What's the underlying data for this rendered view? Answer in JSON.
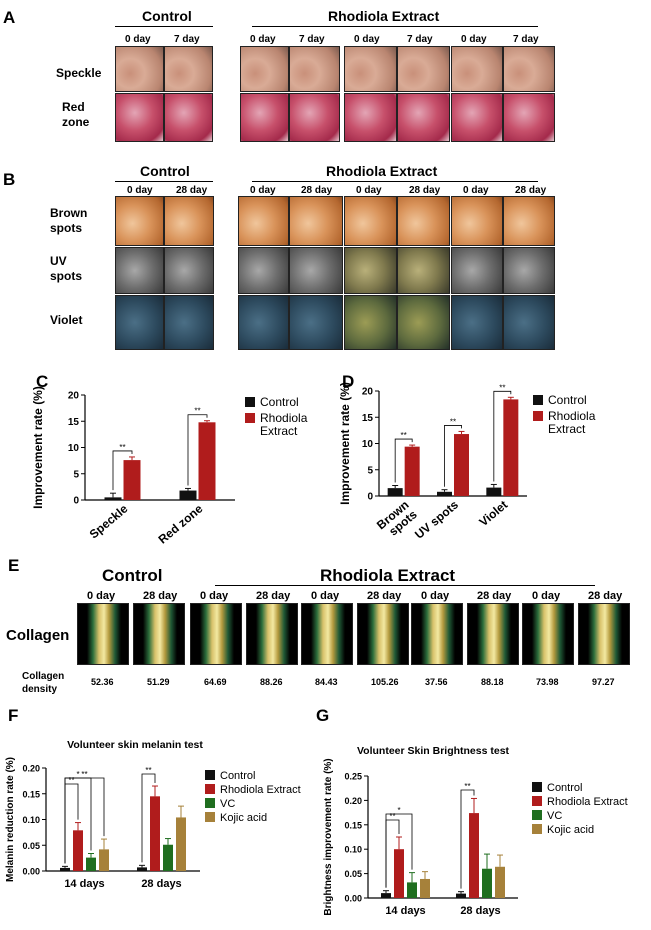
{
  "panelA": {
    "label": "A",
    "control_title": "Control",
    "extract_title": "Rhodiola Extract",
    "day_labels": [
      "0 day",
      "7 day",
      "0 day",
      "7 day",
      "0 day",
      "7 day",
      "0 day",
      "7 day"
    ],
    "rows": [
      "Speckle",
      "Red\nzone"
    ]
  },
  "panelB": {
    "label": "B",
    "control_title": "Control",
    "extract_title": "Rhodiola Extract",
    "day_labels": [
      "0 day",
      "28 day",
      "0 day",
      "28 day",
      "0 day",
      "28 day",
      "0 day",
      "28 day"
    ],
    "rows": [
      "Brown\nspots",
      "UV\nspots",
      "Violet"
    ]
  },
  "panelE": {
    "label": "E",
    "control_title": "Control",
    "extract_title": "Rhodiola Extract",
    "day_labels": [
      "0 day",
      "28 day",
      "0 day",
      "28 day",
      "0 day",
      "28 day",
      "0 day",
      "28 day",
      "0 day",
      "28 day"
    ],
    "row_label": "Collagen",
    "density_label": "Collagen\ndensity",
    "density_values": [
      "52.36",
      "51.29",
      "64.69",
      "88.26",
      "84.43",
      "105.26",
      "37.56",
      "88.18",
      "73.98",
      "97.27"
    ]
  },
  "colors": {
    "control": "#111111",
    "rhodiola": "#b01c1c",
    "vc": "#1f6e1f",
    "kojic": "#a6813a"
  },
  "chart_data": [
    {
      "panel": "C",
      "type": "bar",
      "ylabel": "Improvement rate (%)",
      "categories": [
        "Speckle",
        "Red zone"
      ],
      "ylim": [
        0,
        20
      ],
      "yticks": [
        0,
        5,
        10,
        15,
        20
      ],
      "series": [
        {
          "name": "Control",
          "values": [
            0.5,
            1.8
          ],
          "errors": [
            0.8,
            0.4
          ]
        },
        {
          "name": "Rhodiola\nExtract",
          "values": [
            7.6,
            14.8
          ],
          "errors": [
            0.6,
            0.3
          ]
        }
      ],
      "significance": [
        "**",
        "**"
      ]
    },
    {
      "panel": "D",
      "type": "bar",
      "ylabel": "Improvement rate (%)",
      "categories": [
        "Brown\nspots",
        "UV spots",
        "Violet"
      ],
      "ylim": [
        0,
        20
      ],
      "yticks": [
        0,
        5,
        10,
        15,
        20
      ],
      "series": [
        {
          "name": "Control",
          "values": [
            1.5,
            0.8,
            1.6
          ],
          "errors": [
            0.5,
            0.4,
            0.6
          ]
        },
        {
          "name": "Rhodiola\nExtract",
          "values": [
            9.4,
            11.8,
            18.4
          ],
          "errors": [
            0.3,
            0.5,
            0.4
          ]
        }
      ],
      "significance": [
        "**",
        "**",
        "**"
      ]
    },
    {
      "panel": "F",
      "type": "bar",
      "title": "Volunteer skin melanin test",
      "ylabel": "Melanin reduction rate (%)",
      "categories": [
        "14 days",
        "28 days"
      ],
      "ylim": [
        0,
        0.2
      ],
      "yticks": [
        0.0,
        0.05,
        0.1,
        0.15,
        0.2
      ],
      "ytick_labels": [
        "0.00",
        "0.05",
        "0.10",
        "0.15",
        "0.20"
      ],
      "series": [
        {
          "name": "Control",
          "values": [
            0.006,
            0.007
          ],
          "errors": [
            0.003,
            0.004
          ]
        },
        {
          "name": "Rhodiola Extract",
          "values": [
            0.079,
            0.145
          ],
          "errors": [
            0.015,
            0.02
          ]
        },
        {
          "name": "VC",
          "values": [
            0.026,
            0.051
          ],
          "errors": [
            0.008,
            0.012
          ]
        },
        {
          "name": "Kojic acid",
          "values": [
            0.042,
            0.104
          ],
          "errors": [
            0.02,
            0.022
          ]
        }
      ],
      "significance": [
        "**",
        "*",
        "**",
        "**"
      ]
    },
    {
      "panel": "G",
      "type": "bar",
      "title": "Volunteer Skin Brightness  test",
      "ylabel": "Brightness improvement rate (%)",
      "categories": [
        "14 days",
        "28 days"
      ],
      "ylim": [
        0,
        0.25
      ],
      "yticks": [
        0.0,
        0.05,
        0.1,
        0.15,
        0.2,
        0.25
      ],
      "ytick_labels": [
        "0.00",
        "0.05",
        "0.10",
        "0.15",
        "0.20",
        "0.25"
      ],
      "series": [
        {
          "name": "Control",
          "values": [
            0.01,
            0.009
          ],
          "errors": [
            0.005,
            0.004
          ]
        },
        {
          "name": "Rhodiola Extract",
          "values": [
            0.1,
            0.174
          ],
          "errors": [
            0.025,
            0.03
          ]
        },
        {
          "name": "VC",
          "values": [
            0.032,
            0.06
          ],
          "errors": [
            0.02,
            0.03
          ]
        },
        {
          "name": "Kojic acid",
          "values": [
            0.039,
            0.064
          ],
          "errors": [
            0.015,
            0.024
          ]
        }
      ],
      "significance": [
        "**",
        "*",
        "**"
      ]
    }
  ]
}
